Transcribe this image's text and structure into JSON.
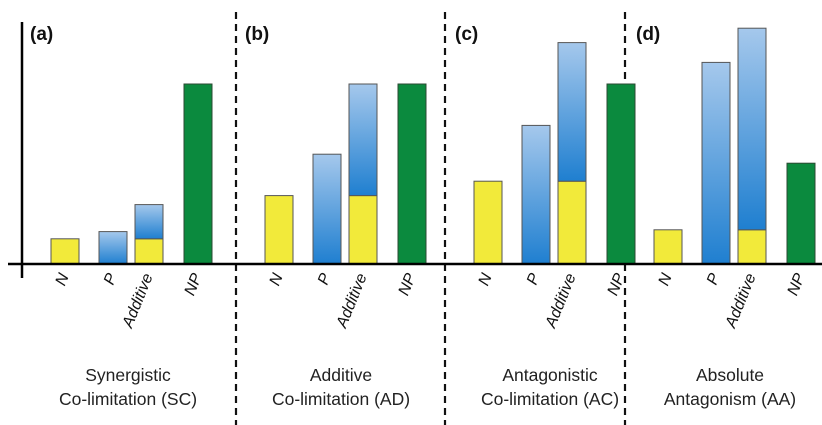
{
  "chart_data": {
    "type": "bar",
    "stacked_series": [
      "N",
      "P"
    ],
    "colors": {
      "N": "#f2ea3a",
      "P_top": "#a5c8ec",
      "P_bottom": "#1f7fd0",
      "NP": "#0b8a3e",
      "divider": "#111111",
      "axis": "#000000"
    },
    "ylim": [
      0,
      100
    ],
    "panels": [
      {
        "letter": "(a)",
        "caption": [
          "Synergistic",
          "Co-limitation (SC)"
        ],
        "categories": [
          "N",
          "P",
          "Additive",
          "NP"
        ],
        "values": {
          "N": [
            14,
            0,
            14,
            0
          ],
          "P": [
            0,
            18,
            19,
            0
          ],
          "NP": [
            0,
            0,
            0,
            100
          ]
        }
      },
      {
        "letter": "(b)",
        "caption": [
          "Additive",
          "Co-limitation (AD)"
        ],
        "categories": [
          "N",
          "P",
          "Additive",
          "NP"
        ],
        "values": {
          "N": [
            38,
            0,
            38,
            0
          ],
          "P": [
            0,
            61,
            62,
            0
          ],
          "NP": [
            0,
            0,
            0,
            100
          ]
        }
      },
      {
        "letter": "(c)",
        "caption": [
          "Antagonistic",
          "Co-limitation (AC)"
        ],
        "categories": [
          "N",
          "P",
          "Additive",
          "NP"
        ],
        "values": {
          "N": [
            46,
            0,
            46,
            0
          ],
          "P": [
            0,
            77,
            77,
            0
          ],
          "NP": [
            0,
            0,
            0,
            100
          ]
        }
      },
      {
        "letter": "(d)",
        "caption": [
          "Absolute",
          "Antagonism (AA)"
        ],
        "categories": [
          "N",
          "P",
          "Additive",
          "NP"
        ],
        "values": {
          "N": [
            19,
            0,
            19,
            0
          ],
          "P": [
            0,
            112,
            112,
            0
          ],
          "NP": [
            0,
            0,
            0,
            56
          ]
        }
      }
    ]
  }
}
